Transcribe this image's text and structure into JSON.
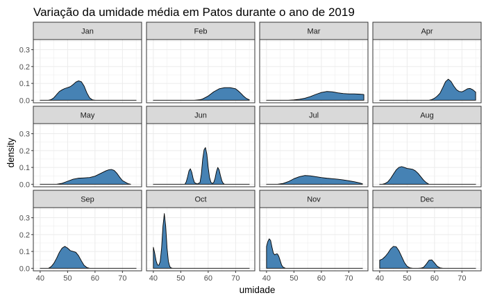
{
  "chart_data": {
    "type": "area",
    "title": "Variação da umidade média em Patos durante o ano de 2019",
    "xlabel": "umidade",
    "ylabel": "density",
    "xlim": [
      37.5,
      77
    ],
    "ylim": [
      -0.015,
      0.36
    ],
    "x_ticks": [
      40,
      50,
      60,
      70
    ],
    "y_ticks": [
      0.0,
      0.1,
      0.2,
      0.3
    ],
    "y_tick_labels": [
      "0.0",
      "0.1",
      "0.2",
      "0.3"
    ],
    "grid": true,
    "layout": "facet grid 3 rows x 4 columns",
    "colors": {
      "fill": "#4682b4",
      "line": "#000000",
      "strip_bg": "#d9d9d9",
      "grid": "#ebebeb"
    },
    "facets": [
      {
        "name": "Jan",
        "x": [
          40,
          43,
          44,
          45,
          46,
          47,
          48,
          49,
          50,
          51,
          52,
          53,
          54,
          55,
          56,
          57,
          58,
          59,
          60,
          75
        ],
        "y": [
          0,
          0,
          0.004,
          0.015,
          0.034,
          0.052,
          0.062,
          0.07,
          0.075,
          0.081,
          0.093,
          0.108,
          0.115,
          0.11,
          0.085,
          0.045,
          0.015,
          0.003,
          0,
          0
        ]
      },
      {
        "name": "Feb",
        "x": [
          40,
          55,
          57,
          58,
          60,
          62,
          64,
          66,
          68,
          70,
          71,
          72,
          73,
          74,
          75
        ],
        "y": [
          0,
          0,
          0.003,
          0.008,
          0.025,
          0.05,
          0.068,
          0.075,
          0.075,
          0.068,
          0.055,
          0.04,
          0.023,
          0.01,
          0.003
        ]
      },
      {
        "name": "Mar",
        "x": [
          40,
          48,
          50,
          52,
          54,
          56,
          58,
          60,
          62,
          64,
          66,
          68,
          70,
          72,
          74,
          75.5
        ],
        "y": [
          0,
          0,
          0.002,
          0.006,
          0.012,
          0.022,
          0.035,
          0.046,
          0.052,
          0.05,
          0.044,
          0.04,
          0.038,
          0.038,
          0.036,
          0.034
        ]
      },
      {
        "name": "Apr",
        "x": [
          40,
          58,
          59,
          60,
          61,
          62,
          63,
          64,
          65,
          66,
          67,
          68,
          69,
          70,
          71,
          72,
          73,
          74,
          75
        ],
        "y": [
          0,
          0,
          0.004,
          0.012,
          0.025,
          0.042,
          0.075,
          0.11,
          0.125,
          0.112,
          0.085,
          0.063,
          0.052,
          0.05,
          0.058,
          0.068,
          0.07,
          0.062,
          0.048
        ]
      },
      {
        "name": "May",
        "x": [
          40,
          46,
          48,
          50,
          52,
          54,
          56,
          58,
          60,
          62,
          64,
          65,
          66,
          67,
          68,
          69,
          70,
          72,
          73
        ],
        "y": [
          0,
          0,
          0.006,
          0.018,
          0.03,
          0.036,
          0.038,
          0.04,
          0.048,
          0.064,
          0.08,
          0.086,
          0.088,
          0.082,
          0.065,
          0.042,
          0.022,
          0.004,
          0
        ]
      },
      {
        "name": "Jun",
        "x": [
          40,
          51.5,
          52,
          52.5,
          53,
          53.5,
          54,
          54.5,
          55,
          56,
          57,
          57.5,
          58,
          58.5,
          59,
          59.5,
          60,
          60.5,
          61,
          61.5,
          62,
          62.5,
          63,
          63.5,
          64,
          64.5,
          65,
          65.5,
          66,
          75
        ],
        "y": [
          0,
          0,
          0.015,
          0.045,
          0.08,
          0.092,
          0.072,
          0.035,
          0.01,
          0.002,
          0.01,
          0.06,
          0.15,
          0.205,
          0.218,
          0.18,
          0.1,
          0.04,
          0.012,
          0.005,
          0.01,
          0.035,
          0.075,
          0.1,
          0.085,
          0.05,
          0.02,
          0.005,
          0,
          0
        ]
      },
      {
        "name": "Jul",
        "x": [
          40,
          44,
          46,
          48,
          50,
          52,
          54,
          56,
          58,
          60,
          62,
          64,
          66,
          68,
          70,
          72,
          74,
          75
        ],
        "y": [
          0,
          0,
          0.005,
          0.016,
          0.033,
          0.045,
          0.052,
          0.05,
          0.045,
          0.04,
          0.036,
          0.033,
          0.03,
          0.026,
          0.021,
          0.015,
          0.008,
          0.003
        ]
      },
      {
        "name": "Aug",
        "x": [
          40,
          41,
          42,
          43,
          44,
          45,
          46,
          47,
          48,
          49,
          50,
          51,
          52,
          53,
          54,
          55,
          56,
          57,
          58,
          75
        ],
        "y": [
          0,
          0,
          0.005,
          0.015,
          0.035,
          0.06,
          0.085,
          0.1,
          0.105,
          0.1,
          0.094,
          0.092,
          0.089,
          0.08,
          0.065,
          0.045,
          0.025,
          0.01,
          0,
          0
        ]
      },
      {
        "name": "Sep",
        "x": [
          40,
          43,
          44,
          45,
          46,
          47,
          48,
          49,
          50,
          51,
          52,
          53,
          54,
          55,
          56,
          57,
          58,
          75
        ],
        "y": [
          0,
          0,
          0.01,
          0.03,
          0.06,
          0.095,
          0.12,
          0.13,
          0.12,
          0.105,
          0.1,
          0.095,
          0.075,
          0.045,
          0.018,
          0.005,
          0,
          0
        ]
      },
      {
        "name": "Oct",
        "x": [
          40,
          40.5,
          41,
          41.5,
          42,
          42.5,
          43,
          43.5,
          44,
          44.5,
          45,
          45.5,
          46,
          46.5,
          47,
          75
        ],
        "y": [
          0.125,
          0.09,
          0.045,
          0.02,
          0.018,
          0.04,
          0.12,
          0.25,
          0.325,
          0.25,
          0.12,
          0.04,
          0.01,
          0.002,
          0,
          0
        ]
      },
      {
        "name": "Nov",
        "x": [
          40,
          40.5,
          41,
          41.5,
          42,
          42.5,
          43,
          43.5,
          44,
          44.5,
          45,
          45.5,
          46,
          47,
          75
        ],
        "y": [
          0.13,
          0.16,
          0.175,
          0.165,
          0.125,
          0.09,
          0.08,
          0.085,
          0.085,
          0.07,
          0.045,
          0.02,
          0.007,
          0,
          0
        ]
      },
      {
        "name": "Dec",
        "x": [
          40,
          41,
          42,
          43,
          44,
          45,
          46,
          47,
          48,
          49,
          50,
          51,
          52,
          53,
          54,
          55,
          56,
          57,
          58,
          59,
          60,
          61,
          62,
          63,
          75
        ],
        "y": [
          0.048,
          0.055,
          0.07,
          0.09,
          0.115,
          0.13,
          0.128,
          0.105,
          0.07,
          0.035,
          0.012,
          0.003,
          0,
          0,
          0,
          0.001,
          0.006,
          0.025,
          0.048,
          0.05,
          0.032,
          0.012,
          0.003,
          0,
          0
        ]
      }
    ]
  }
}
